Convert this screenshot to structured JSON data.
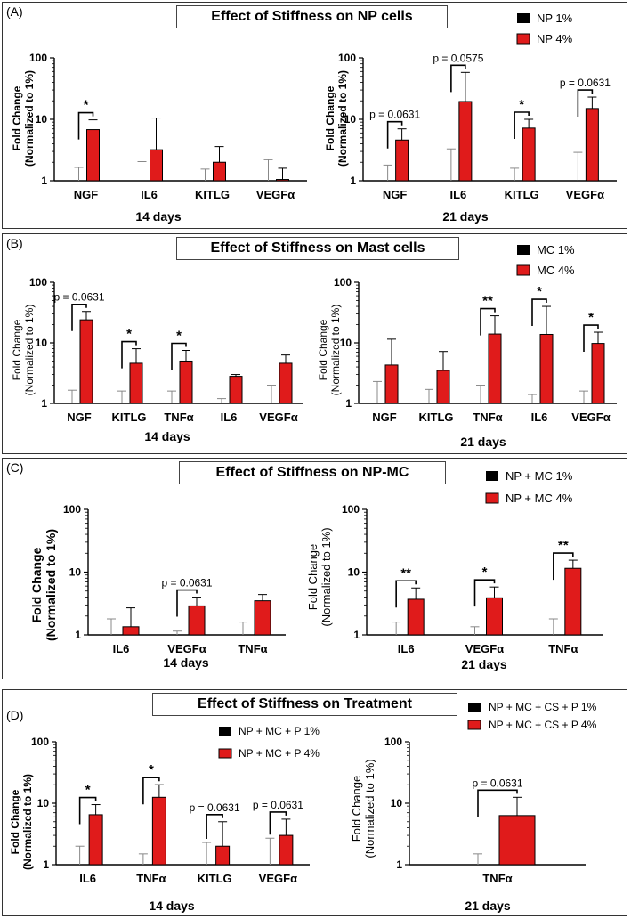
{
  "colors": {
    "low": "#ffffff",
    "high": "#e01b1b",
    "axis": "#000000",
    "frame": "#333333"
  },
  "panels": [
    {
      "label": "(A)",
      "title": "Effect of Stiffness on NP cells",
      "legend": [
        "NP 1%",
        "NP 4%"
      ],
      "ylabel": [
        "Fold Change",
        "(Normalized to 1%)"
      ],
      "time": [
        "14 days",
        "21 days"
      ]
    },
    {
      "label": "(B)",
      "title": "Effect of Stiffness on Mast cells",
      "legend": [
        "MC 1%",
        "MC 4%"
      ],
      "ylabel": [
        "Fold Change",
        "(Normalized to 1%)"
      ],
      "time": [
        "14 days",
        "21 days"
      ]
    },
    {
      "label": "(C)",
      "title": "Effect of Stiffness on NP-MC",
      "legend": [
        "NP + MC 1%",
        "NP + MC 4%"
      ],
      "ylabel": [
        "Fold Change",
        "(Normalized to 1%)"
      ],
      "time": [
        "14 days",
        "21 days"
      ]
    },
    {
      "label": "(D)",
      "title": "Effect of Stiffness on Treatment",
      "legend": [
        "NP + MC + P 1%",
        "NP + MC + P 4%"
      ],
      "legend_right": [
        "NP + MC + CS + P 1%",
        "NP + MC + CS + P 4%"
      ],
      "ylabel": [
        "Fold Change",
        "(Normalized to 1%)"
      ],
      "time": [
        "14 days",
        "21 days"
      ]
    }
  ],
  "chart_data": [
    {
      "id": "A14",
      "type": "bar",
      "scale": "log",
      "ylim": [
        1,
        100
      ],
      "ticks": [
        "1",
        "10",
        "100"
      ],
      "title": "Effect of Stiffness on NP cells",
      "ylabel": "Fold Change (Normalized to 1%)",
      "xlabel": "14 days",
      "categories": [
        "NGF",
        "IL6",
        "KITLG",
        "VEGFα"
      ],
      "series": [
        {
          "name": "NP 1%",
          "values": [
            1,
            1,
            1,
            1
          ],
          "err": [
            1.65,
            2.05,
            1.55,
            2.2
          ]
        },
        {
          "name": "NP 4%",
          "values": [
            6.8,
            3.2,
            2.0,
            1.05
          ],
          "err": [
            9.8,
            10.5,
            3.6,
            1.6
          ]
        }
      ],
      "annotations": [
        {
          "left": 0,
          "right": 0,
          "label": "*"
        }
      ]
    },
    {
      "id": "A21",
      "type": "bar",
      "scale": "log",
      "ylim": [
        1,
        100
      ],
      "ticks": [
        "1",
        "10",
        "100"
      ],
      "title": "Effect of Stiffness on NP cells",
      "ylabel": "Fold Change (Normalized to 1%)",
      "xlabel": "21 days",
      "categories": [
        "NGF",
        "IL6",
        "KITLG",
        "VEGFα"
      ],
      "series": [
        {
          "name": "NP 1%",
          "values": [
            1,
            1,
            1,
            1
          ],
          "err": [
            1.8,
            3.3,
            1.6,
            2.9
          ]
        },
        {
          "name": "NP 4%",
          "values": [
            4.6,
            19.5,
            7.2,
            15.0
          ],
          "err": [
            7.0,
            58.0,
            10.0,
            23.0
          ]
        }
      ],
      "annotations": [
        {
          "left": 0,
          "right": 0,
          "label": "p = 0.0631"
        },
        {
          "left": 1,
          "right": 1,
          "label": "p = 0.0575"
        },
        {
          "left": 2,
          "right": 2,
          "label": "*"
        },
        {
          "left": 3,
          "right": 3,
          "label": "p = 0.0631"
        }
      ]
    },
    {
      "id": "B14",
      "type": "bar",
      "scale": "log",
      "ylim": [
        1,
        100
      ],
      "ticks": [
        "1",
        "10",
        "100"
      ],
      "title": "Effect of Stiffness on Mast cells",
      "ylabel": "Fold Change (Normalized to 1%)",
      "xlabel": "14 days",
      "categories": [
        "NGF",
        "KITLG",
        "TNFα",
        "IL6",
        "VEGFα"
      ],
      "series": [
        {
          "name": "MC 1%",
          "values": [
            1,
            1,
            1,
            1,
            1
          ],
          "err": [
            1.65,
            1.6,
            1.6,
            1.2,
            2.0
          ]
        },
        {
          "name": "MC 4%",
          "values": [
            24,
            4.6,
            5.0,
            2.8,
            4.6
          ],
          "err": [
            33,
            8.0,
            7.5,
            3.0,
            6.3
          ]
        }
      ],
      "annotations": [
        {
          "left": 0,
          "right": 0,
          "label": "p = 0.0631"
        },
        {
          "left": 1,
          "right": 1,
          "label": "*"
        },
        {
          "left": 2,
          "right": 2,
          "label": "*"
        }
      ]
    },
    {
      "id": "B21",
      "type": "bar",
      "scale": "log",
      "ylim": [
        1,
        100
      ],
      "ticks": [
        "1",
        "10",
        "100"
      ],
      "title": "Effect of Stiffness on Mast cells",
      "ylabel": "Fold Change (Normalized to 1%)",
      "xlabel": "21 days",
      "categories": [
        "NGF",
        "KITLG",
        "TNFα",
        "IL6",
        "VEGFα"
      ],
      "series": [
        {
          "name": "MC 1%",
          "values": [
            1,
            1,
            1,
            1,
            1
          ],
          "err": [
            2.3,
            1.7,
            2.0,
            1.4,
            1.6
          ]
        },
        {
          "name": "MC 4%",
          "values": [
            4.3,
            3.5,
            14.0,
            13.8,
            9.8
          ],
          "err": [
            11.5,
            7.2,
            28.0,
            40.0,
            15.0
          ]
        }
      ],
      "annotations": [
        {
          "left": 2,
          "right": 2,
          "label": "**"
        },
        {
          "left": 3,
          "right": 3,
          "label": "*"
        },
        {
          "left": 4,
          "right": 4,
          "label": "*"
        }
      ]
    },
    {
      "id": "C14",
      "type": "bar",
      "scale": "log",
      "ylim": [
        1,
        100
      ],
      "ticks": [
        "1",
        "10",
        "100"
      ],
      "title": "Effect of Stiffness on NP-MC",
      "ylabel": "Fold Change (Normalized to 1%)",
      "xlabel": "14 days",
      "categories": [
        "IL6",
        "VEGFα",
        "TNFα"
      ],
      "series": [
        {
          "name": "NP + MC 1%",
          "values": [
            1,
            1,
            1
          ],
          "err": [
            1.8,
            1.15,
            1.6
          ]
        },
        {
          "name": "NP + MC 4%",
          "values": [
            1.35,
            2.9,
            3.5
          ],
          "err": [
            2.7,
            4.0,
            4.4
          ]
        }
      ],
      "annotations": [
        {
          "left": 1,
          "right": 1,
          "label": "p = 0.0631"
        }
      ]
    },
    {
      "id": "C21",
      "type": "bar",
      "scale": "log",
      "ylim": [
        1,
        100
      ],
      "ticks": [
        "1",
        "10",
        "100"
      ],
      "title": "Effect of Stiffness on NP-MC",
      "ylabel": "Fold Change (Normalized to 1%)",
      "xlabel": "21 days",
      "categories": [
        "IL6",
        "VEGFα",
        "TNFα"
      ],
      "series": [
        {
          "name": "NP + MC 1%",
          "values": [
            1,
            1,
            1
          ],
          "err": [
            1.6,
            1.35,
            1.8
          ]
        },
        {
          "name": "NP + MC 4%",
          "values": [
            3.7,
            3.9,
            11.5
          ],
          "err": [
            5.6,
            5.8,
            15.5
          ]
        }
      ],
      "annotations": [
        {
          "left": 0,
          "right": 0,
          "label": "**"
        },
        {
          "left": 1,
          "right": 1,
          "label": "*"
        },
        {
          "left": 2,
          "right": 2,
          "label": "**"
        }
      ]
    },
    {
      "id": "D14",
      "type": "bar",
      "scale": "log",
      "ylim": [
        1,
        100
      ],
      "ticks": [
        "1",
        "10",
        "100"
      ],
      "title": "Effect of Stiffness on Treatment",
      "ylabel": "Fold Change (Normalized to 1%)",
      "xlabel": "14 days",
      "categories": [
        "IL6",
        "TNFα",
        "KITLG",
        "VEGFα"
      ],
      "series": [
        {
          "name": "NP + MC + P 1%",
          "values": [
            1,
            1,
            1,
            1
          ],
          "err": [
            2.0,
            1.5,
            2.3,
            2.7
          ]
        },
        {
          "name": "NP + MC + P 4%",
          "values": [
            6.5,
            12.5,
            2.0,
            3.0
          ],
          "err": [
            9.5,
            20.0,
            5.0,
            5.5
          ]
        }
      ],
      "annotations": [
        {
          "left": 0,
          "right": 0,
          "label": "*"
        },
        {
          "left": 1,
          "right": 1,
          "label": "*"
        },
        {
          "left": 2,
          "right": 2,
          "label": "p = 0.0631"
        },
        {
          "left": 3,
          "right": 3,
          "label": "p = 0.0631"
        }
      ]
    },
    {
      "id": "D21",
      "type": "bar",
      "scale": "log",
      "ylim": [
        1,
        100
      ],
      "ticks": [
        "1",
        "10",
        "100"
      ],
      "title": "Effect of Stiffness on Treatment",
      "ylabel": "Fold Change (Normalized to 1%)",
      "xlabel": "21 days",
      "categories": [
        "TNFα"
      ],
      "series": [
        {
          "name": "NP + MC + CS + P 1%",
          "values": [
            1
          ],
          "err": [
            1.5
          ]
        },
        {
          "name": "NP + MC + CS + P 4%",
          "values": [
            6.3
          ],
          "err": [
            12.5
          ]
        }
      ],
      "annotations": [
        {
          "left": 0,
          "right": 0,
          "label": "p = 0.0631"
        }
      ]
    }
  ]
}
